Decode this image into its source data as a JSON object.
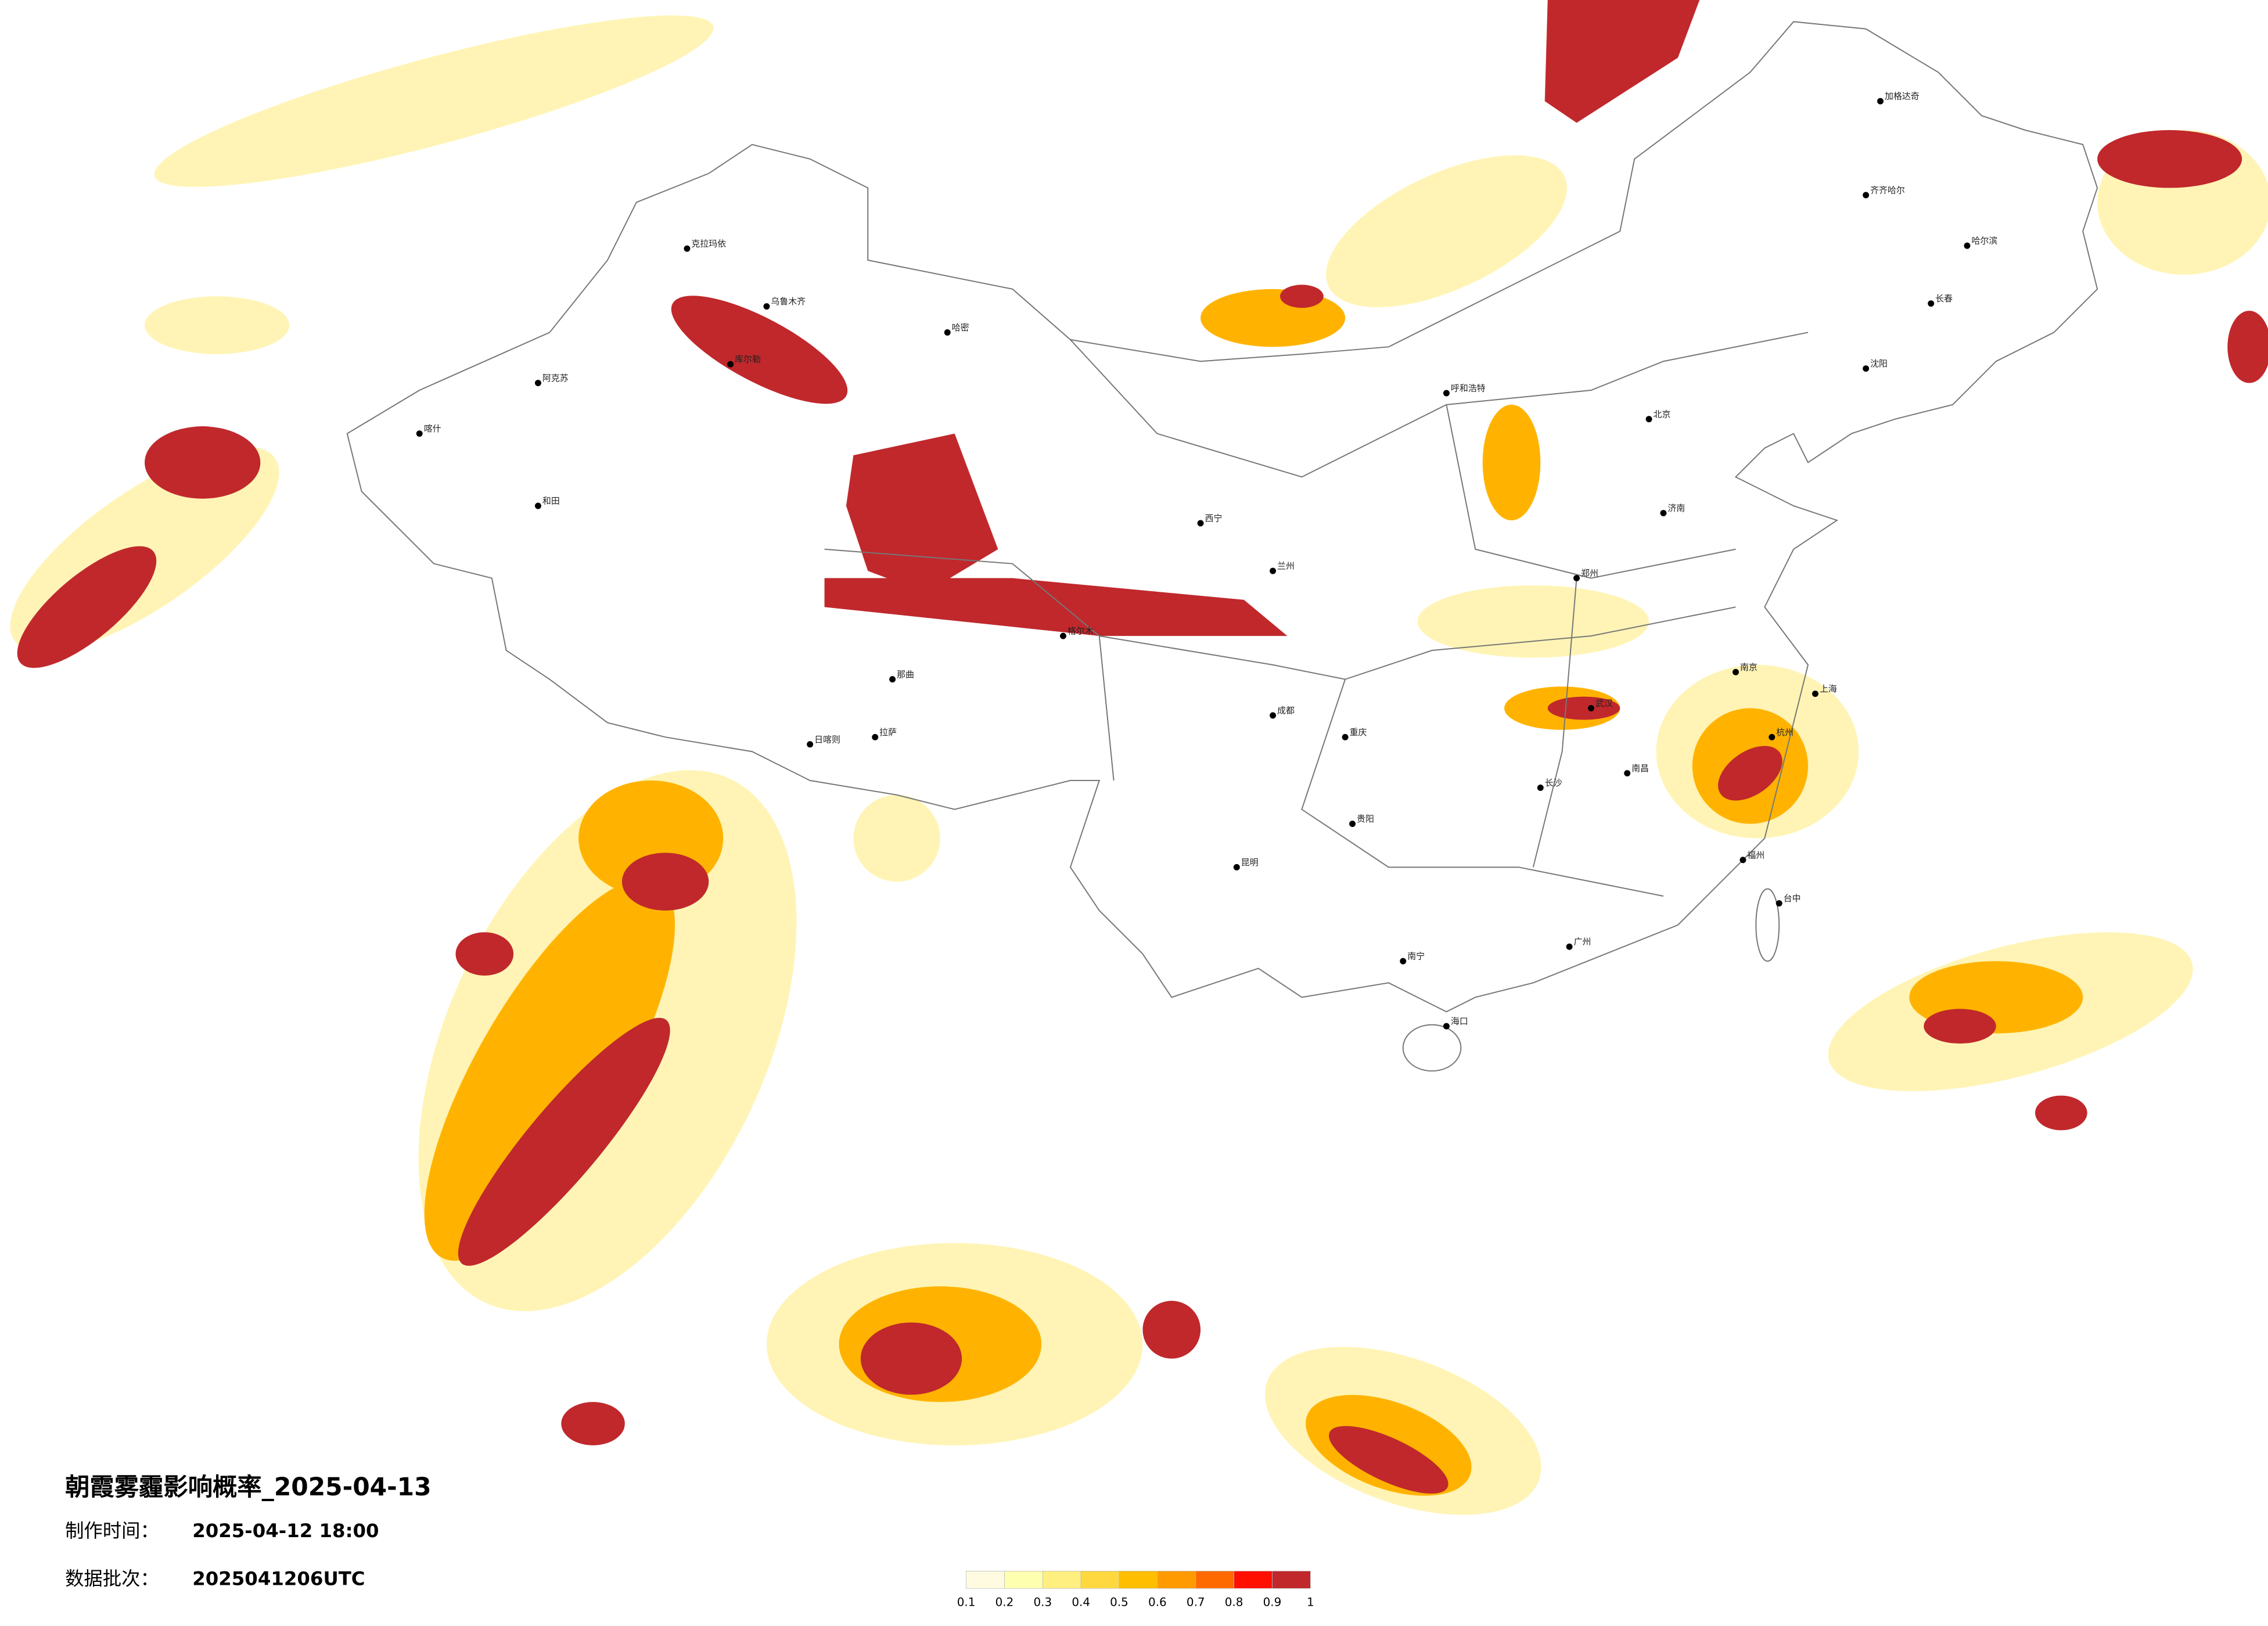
{
  "title": "朝霞雾霾影响概率_2025-04-13",
  "made_time": {
    "label": "制作时间：",
    "value": "2025-04-12 18:00"
  },
  "batch": {
    "label": "数据批次：",
    "value": "2025041206UTC"
  },
  "legend": {
    "ticks": [
      0.1,
      0.2,
      0.3,
      0.4,
      0.5,
      0.6,
      0.7,
      0.8,
      0.9,
      1
    ],
    "colors": [
      "#fffbe0",
      "#ffffb0",
      "#ffef80",
      "#ffd840",
      "#ffbf00",
      "#ff9a00",
      "#ff6a00",
      "#ff1000",
      "#c0282c"
    ]
  },
  "cities": [
    "克拉玛依",
    "乌鲁木齐",
    "库尔勒",
    "阿克苏",
    "喀什",
    "和田",
    "哈密",
    "格尔木",
    "那曲",
    "日喀则",
    "拉萨",
    "西宁",
    "兰州",
    "呼和浩特",
    "北京",
    "加格达奇",
    "齐齐哈尔",
    "哈尔滨",
    "长春",
    "沈阳",
    "济南",
    "郑州",
    "武汉",
    "南京",
    "上海",
    "杭州",
    "长沙",
    "南昌",
    "福州",
    "广州",
    "南宁",
    "昆明",
    "贵阳",
    "成都",
    "重庆",
    "海口",
    "台中"
  ]
}
